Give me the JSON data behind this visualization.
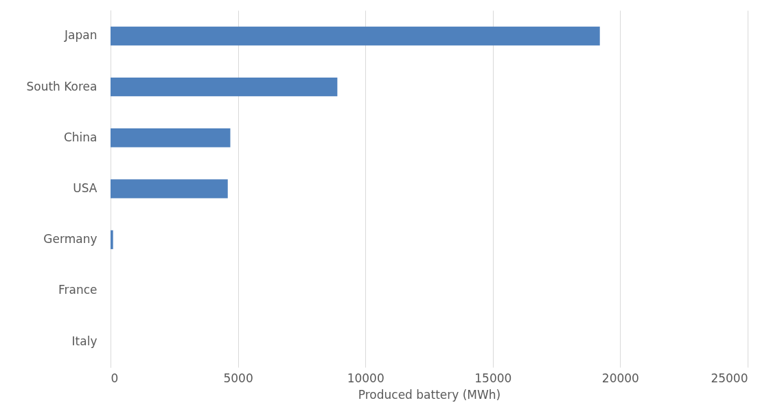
{
  "chart_data": {
    "type": "bar",
    "orientation": "horizontal",
    "categories": [
      "Japan",
      "South Korea",
      "China",
      "USA",
      "Germany",
      "France",
      "Italy"
    ],
    "values": [
      19200,
      8900,
      4700,
      4600,
      100,
      0,
      0
    ],
    "color": "#4f81bd",
    "xlabel": "Produced battery (MWh)",
    "xlim": [
      0,
      25000
    ],
    "xticks": [
      0,
      5000,
      10000,
      15000,
      20000,
      25000
    ],
    "grid": "x"
  }
}
